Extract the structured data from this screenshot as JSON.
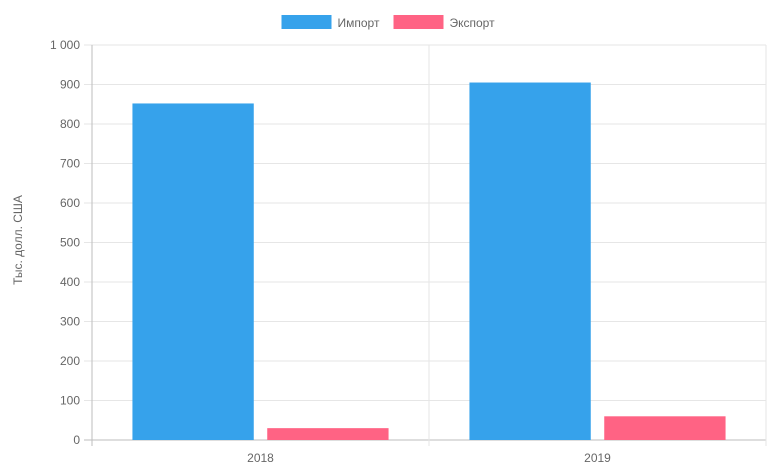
{
  "chart_data": {
    "type": "bar",
    "categories": [
      "2018",
      "2019"
    ],
    "series": [
      {
        "name": "Импорт",
        "values": [
          852,
          905
        ],
        "color": "#36a2eb"
      },
      {
        "name": "Экспорт",
        "values": [
          30,
          60
        ],
        "color": "#ff6384"
      }
    ],
    "ylabel": "Тыс. долл. США",
    "xlabel": "",
    "title": "",
    "ylim": [
      0,
      1000
    ],
    "yticks": [
      {
        "value": 0,
        "label": "0"
      },
      {
        "value": 100,
        "label": "100"
      },
      {
        "value": 200,
        "label": "200"
      },
      {
        "value": 300,
        "label": "300"
      },
      {
        "value": 400,
        "label": "400"
      },
      {
        "value": 500,
        "label": "500"
      },
      {
        "value": 600,
        "label": "600"
      },
      {
        "value": 700,
        "label": "700"
      },
      {
        "value": 800,
        "label": "800"
      },
      {
        "value": 900,
        "label": "900"
      },
      {
        "value": 1000,
        "label": "1 000"
      }
    ],
    "legend_position": "top-center",
    "grid": true,
    "colors": {
      "grid": "#e6e6e6",
      "axis": "#bdbdbd",
      "text": "#666666"
    }
  }
}
